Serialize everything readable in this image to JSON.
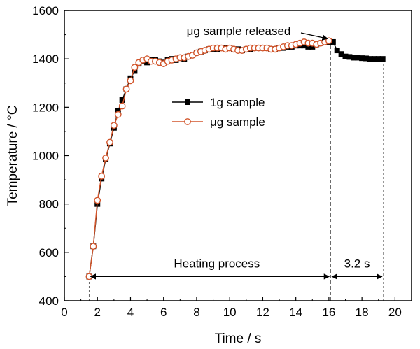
{
  "chart_data": {
    "type": "line",
    "xlabel": "Time / s",
    "ylabel": "Temperature / °C",
    "xlim": [
      0,
      21
    ],
    "ylim": [
      400,
      1600
    ],
    "xticks": [
      0,
      2,
      4,
      6,
      8,
      10,
      12,
      14,
      16,
      18,
      20
    ],
    "yticks": [
      400,
      600,
      800,
      1000,
      1200,
      1400,
      1600
    ],
    "grid": false,
    "legend_position": "center",
    "colors": {
      "series_1g": "#000000",
      "series_ug": "#d2552b",
      "axis": "#000000",
      "guide": "#555555"
    },
    "series": [
      {
        "name": "1g sample",
        "marker": "filled-square",
        "x": [
          1.5,
          1.75,
          2.0,
          2.25,
          2.5,
          2.75,
          3.0,
          3.25,
          3.5,
          3.75,
          4.0,
          4.25,
          4.5,
          4.75,
          5.0,
          5.25,
          5.5,
          5.75,
          6.0,
          6.25,
          6.5,
          6.75,
          7.0,
          7.25,
          7.5,
          7.75,
          8.0,
          8.25,
          8.5,
          8.75,
          9.0,
          9.25,
          9.5,
          9.75,
          10.0,
          10.25,
          10.5,
          10.75,
          11.0,
          11.25,
          11.5,
          11.75,
          12.0,
          12.25,
          12.5,
          12.75,
          13.0,
          13.25,
          13.5,
          13.75,
          14.0,
          14.25,
          14.5,
          14.75,
          15.0,
          15.25,
          15.5,
          15.75,
          16.0,
          16.25,
          16.5,
          16.75,
          17.0,
          17.25,
          17.5,
          17.75,
          18.0,
          18.25,
          18.5,
          18.75,
          19.0,
          19.25
        ],
        "y": [
          500,
          625,
          800,
          905,
          985,
          1050,
          1115,
          1185,
          1230,
          1275,
          1320,
          1350,
          1380,
          1390,
          1385,
          1395,
          1395,
          1390,
          1385,
          1395,
          1400,
          1395,
          1405,
          1400,
          1410,
          1415,
          1425,
          1430,
          1435,
          1440,
          1440,
          1440,
          1445,
          1445,
          1445,
          1440,
          1440,
          1435,
          1440,
          1440,
          1445,
          1445,
          1445,
          1445,
          1440,
          1440,
          1445,
          1445,
          1450,
          1450,
          1455,
          1455,
          1455,
          1450,
          1450,
          1460,
          1465,
          1470,
          1470,
          1470,
          1435,
          1420,
          1410,
          1408,
          1405,
          1405,
          1403,
          1402,
          1400,
          1400,
          1400,
          1400
        ]
      },
      {
        "name": "μg sample",
        "marker": "open-circle",
        "x": [
          1.5,
          1.75,
          2.0,
          2.25,
          2.5,
          2.75,
          3.0,
          3.25,
          3.5,
          3.75,
          4.0,
          4.25,
          4.5,
          4.75,
          5.0,
          5.25,
          5.5,
          5.75,
          6.0,
          6.25,
          6.5,
          6.75,
          7.0,
          7.25,
          7.5,
          7.75,
          8.0,
          8.25,
          8.5,
          8.75,
          9.0,
          9.25,
          9.5,
          9.75,
          10.0,
          10.25,
          10.5,
          10.75,
          11.0,
          11.25,
          11.5,
          11.75,
          12.0,
          12.25,
          12.5,
          12.75,
          13.0,
          13.25,
          13.5,
          13.75,
          14.0,
          14.25,
          14.5,
          14.75,
          15.0,
          15.25,
          15.5,
          15.75,
          16.0
        ],
        "y": [
          500,
          625,
          815,
          915,
          990,
          1055,
          1125,
          1170,
          1205,
          1275,
          1310,
          1365,
          1385,
          1395,
          1400,
          1390,
          1390,
          1385,
          1380,
          1390,
          1395,
          1400,
          1405,
          1405,
          1410,
          1415,
          1425,
          1430,
          1435,
          1440,
          1445,
          1445,
          1445,
          1440,
          1445,
          1440,
          1435,
          1435,
          1440,
          1445,
          1445,
          1445,
          1445,
          1445,
          1440,
          1440,
          1445,
          1450,
          1455,
          1455,
          1460,
          1465,
          1470,
          1465,
          1465,
          1460,
          1465,
          1470,
          1475
        ]
      }
    ],
    "annotations": {
      "release_label": "μg sample released",
      "release_point": {
        "x": 16.05,
        "y": 1475
      },
      "release_time": 16.1,
      "end_time": 19.3,
      "start_time": 1.5,
      "heating_label": "Heating process",
      "duration_label": "3.2 s",
      "arrow_level": 500
    }
  }
}
